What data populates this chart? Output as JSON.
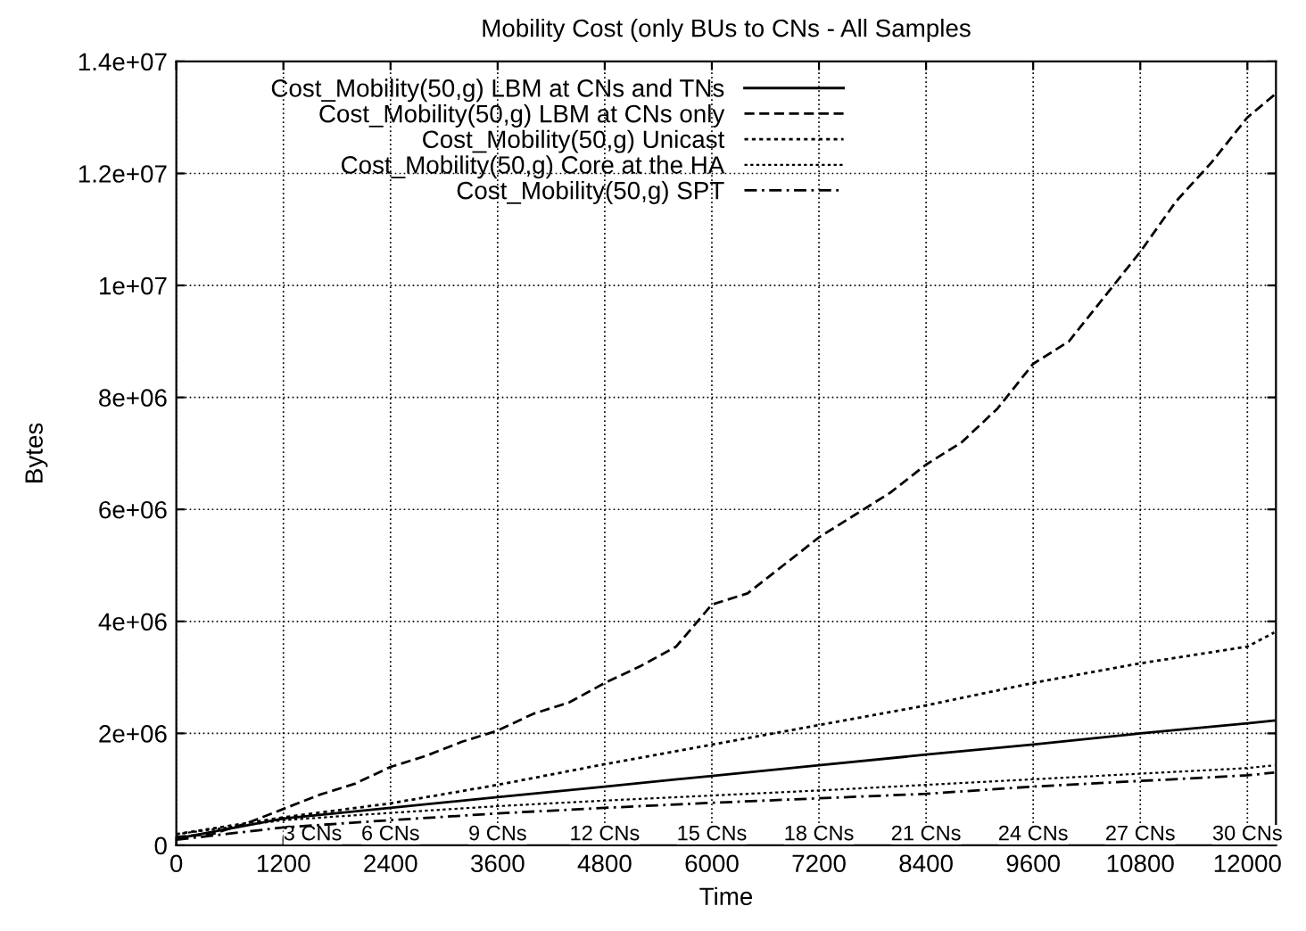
{
  "chart_data": {
    "type": "line",
    "title": "Mobility Cost (only BUs to CNs - All Samples",
    "xlabel": "Time",
    "ylabel": "Bytes",
    "series": [
      {
        "name": "Cost_Mobility(50,g) LBM at CNs and TNs",
        "color": "#000000",
        "line_style": "solid",
        "x": [
          0,
          1200,
          2400,
          3600,
          4800,
          6000,
          7200,
          8400,
          9600,
          10800,
          12000,
          12300
        ],
        "values": [
          120000,
          480000,
          670000,
          860000,
          1050000,
          1240000,
          1430000,
          1620000,
          1800000,
          2000000,
          2180000,
          2230000
        ]
      },
      {
        "name": "Cost_Mobility(50,g) LBM at CNs only",
        "color": "#000000",
        "line_style": "dashed",
        "x": [
          0,
          400,
          800,
          1200,
          1600,
          2000,
          2400,
          2800,
          3200,
          3600,
          4000,
          4400,
          4800,
          5200,
          5600,
          6000,
          6400,
          6800,
          7200,
          7600,
          8000,
          8400,
          8800,
          9200,
          9600,
          10000,
          10400,
          10800,
          11200,
          11600,
          12000,
          12300
        ],
        "values": [
          150000,
          200000,
          400000,
          650000,
          900000,
          1100000,
          1400000,
          1600000,
          1850000,
          2050000,
          2350000,
          2550000,
          2900000,
          3200000,
          3550000,
          4300000,
          4500000,
          5000000,
          5500000,
          5900000,
          6300000,
          6800000,
          7200000,
          7800000,
          8600000,
          9000000,
          9800000,
          10600000,
          11500000,
          12200000,
          13000000,
          13400000
        ]
      },
      {
        "name": "Cost_Mobility(50,g) Unicast",
        "color": "#000000",
        "line_style": "dotted",
        "x": [
          0,
          1200,
          2400,
          3600,
          4800,
          6000,
          7200,
          8400,
          9600,
          10800,
          12000,
          12300
        ],
        "values": [
          200000,
          500000,
          750000,
          1080000,
          1450000,
          1800000,
          2150000,
          2500000,
          2900000,
          3250000,
          3550000,
          3800000
        ]
      },
      {
        "name": "Cost_Mobility(50,g) Core at the HA",
        "color": "#000000",
        "line_style": "dotted",
        "x": [
          0,
          1200,
          2400,
          3600,
          4800,
          6000,
          7200,
          8400,
          9600,
          10800,
          12000,
          12300
        ],
        "values": [
          200000,
          450000,
          580000,
          700000,
          800000,
          890000,
          980000,
          1080000,
          1180000,
          1280000,
          1380000,
          1430000
        ]
      },
      {
        "name": "Cost_Mobility(50,g) SPT",
        "color": "#000000",
        "line_style": "dashdot",
        "x": [
          0,
          1200,
          2400,
          3600,
          4800,
          6000,
          7200,
          8400,
          9600,
          10800,
          12000,
          12300
        ],
        "values": [
          100000,
          320000,
          450000,
          570000,
          670000,
          760000,
          840000,
          920000,
          1050000,
          1150000,
          1250000,
          1300000
        ]
      }
    ],
    "xlim": [
      0,
      12320
    ],
    "xticks": [
      0,
      1200,
      2400,
      3600,
      4800,
      6000,
      7200,
      8400,
      9600,
      10800,
      12000
    ],
    "ylim": [
      0,
      14000000
    ],
    "yticks": [
      0,
      {
        "value": 2000000,
        "label": "2e+06"
      },
      {
        "value": 4000000,
        "label": "4e+06"
      },
      {
        "value": 6000000,
        "label": "6e+06"
      },
      {
        "value": 8000000,
        "label": "8e+06"
      },
      {
        "value": 10000000,
        "label": "1e+07"
      },
      {
        "value": 12000000,
        "label": "1.2e+07"
      },
      {
        "value": 14000000,
        "label": "1.4e+07"
      }
    ],
    "grid": true,
    "legend": "top left",
    "annotations": [
      "3 CNs",
      "6 CNs",
      "9 CNs",
      "12 CNs",
      "15 CNs",
      "18 CNs",
      "21 CNs",
      "24 CNs",
      "27 CNs",
      "30 CNs"
    ]
  }
}
